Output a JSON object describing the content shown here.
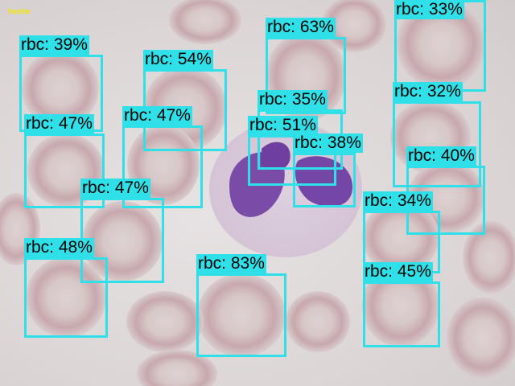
{
  "image_label": "teste",
  "colors": {
    "box": "#2fe0e8",
    "label_background": "#2fe0e8",
    "label_text": "#000000",
    "corner_label": "#f5e400"
  },
  "detections": [
    {
      "label": "rbc: 39%"
    },
    {
      "label": "rbc: 54%"
    },
    {
      "label": "rbc: 63%"
    },
    {
      "label": "rbc: 33%"
    },
    {
      "label": "rbc: 47%"
    },
    {
      "label": "rbc: 47%"
    },
    {
      "label": "rbc: 35%"
    },
    {
      "label": "rbc: 32%"
    },
    {
      "label": "rbc: 51%"
    },
    {
      "label": "rbc: 38%"
    },
    {
      "label": "rbc: 40%"
    },
    {
      "label": "rbc: 47%"
    },
    {
      "label": "rbc: 34%"
    },
    {
      "label": "rbc: 48%"
    },
    {
      "label": "rbc: 83%"
    },
    {
      "label": "rbc: 45%"
    }
  ]
}
